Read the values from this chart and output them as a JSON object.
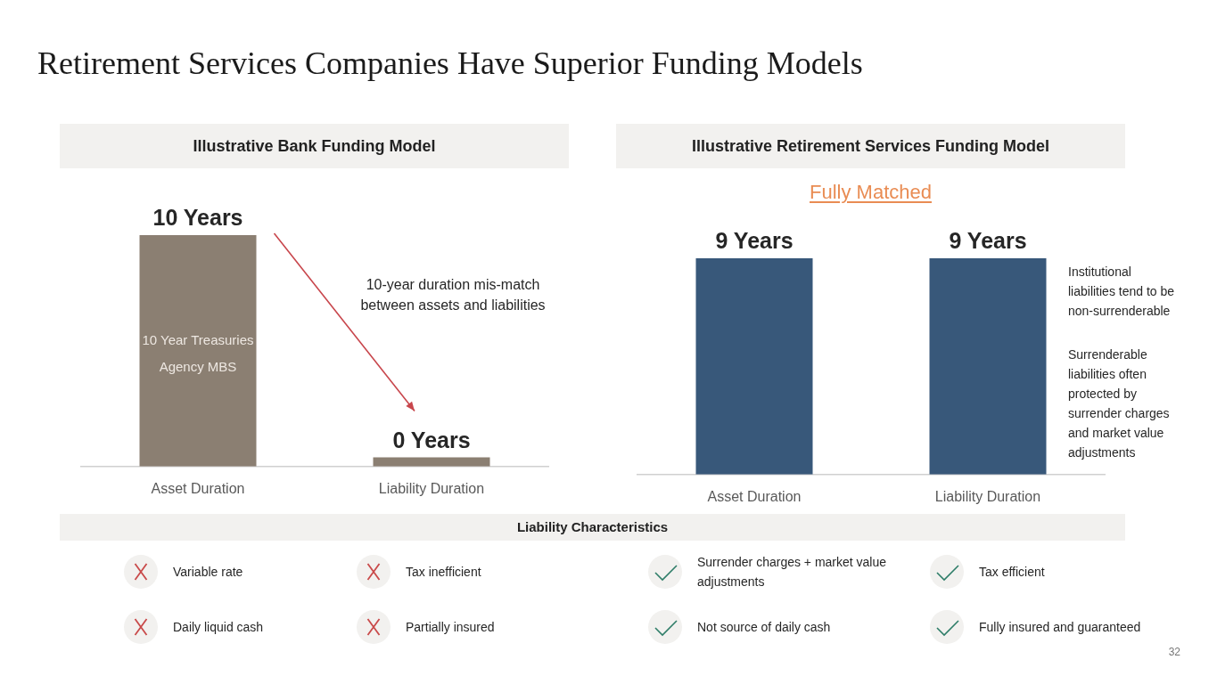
{
  "chart_data": [
    {
      "type": "other",
      "title": "Retirement Services Companies Have Superior Funding Models"
    },
    {
      "type": "bar",
      "title": "Illustrative Bank Funding Model",
      "categories": [
        "Asset Duration",
        "Liability Duration"
      ],
      "values": [
        10,
        0.4
      ],
      "value_labels": [
        "10 Years",
        "0 Years"
      ],
      "color": "#8b7f72",
      "annotations": [
        "10 Year Treasuries",
        "Agency MBS",
        "10-year duration mis-match between assets and liabilities"
      ]
    },
    {
      "type": "bar",
      "title": "Illustrative Retirement Services Funding Model",
      "subtitle": "Fully Matched",
      "categories": [
        "Asset Duration",
        "Liability Duration"
      ],
      "values": [
        9,
        9
      ],
      "value_labels": [
        "9 Years",
        "9 Years"
      ],
      "color": "#38587a",
      "annotations": [
        "Institutional liabilities tend to be non-surrenderable",
        "Surrenderable liabilities often protected by surrender charges and market value adjustments"
      ]
    },
    {
      "type": "other",
      "title": "Liability Characteristics",
      "annotations": [
        "Variable rate",
        "Tax inefficient",
        "Surrender charges + market value adjustments",
        "Tax efficient",
        "Daily liquid cash",
        "Partially insured",
        "Not source of daily cash",
        "Fully insured and guaranteed",
        "32"
      ]
    }
  ]
}
